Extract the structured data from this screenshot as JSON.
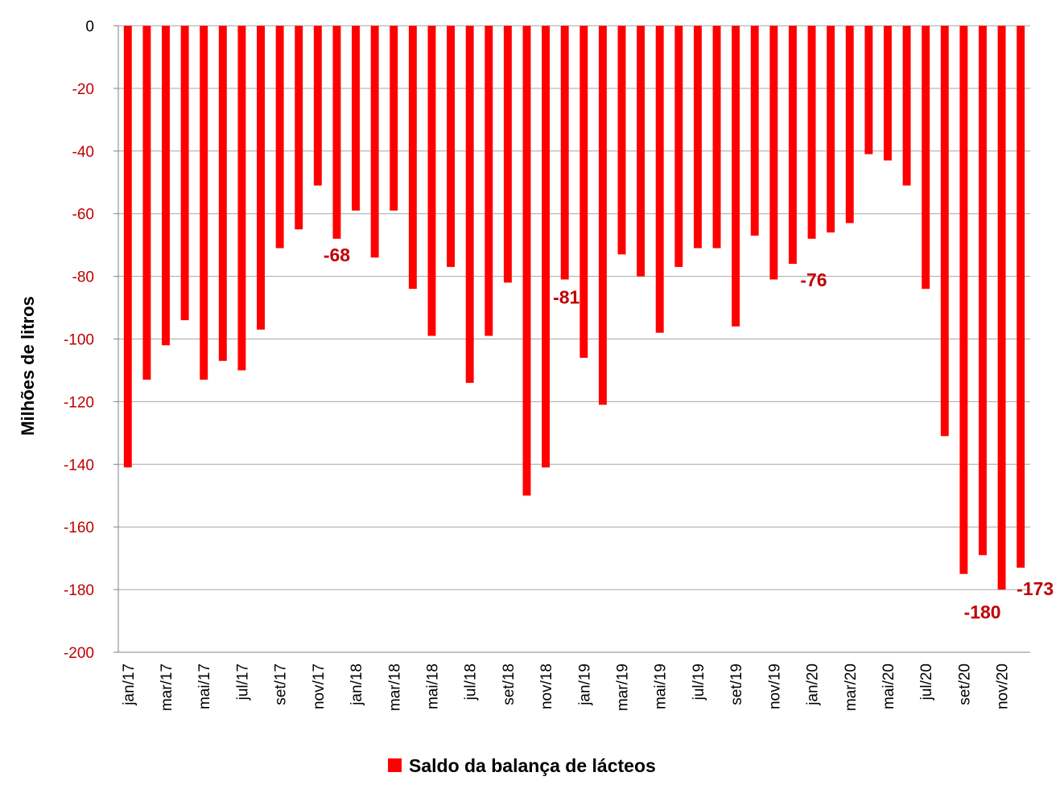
{
  "chart_data": {
    "type": "bar",
    "xlabel": "",
    "ylabel": "Milhões de litros",
    "ylim": [
      -200,
      0
    ],
    "yticks": [
      0,
      -20,
      -40,
      -60,
      -80,
      -100,
      -120,
      -140,
      -160,
      -180,
      -200
    ],
    "grid": true,
    "legend_placement": "bottom",
    "categories": [
      "jan/17",
      "fev/17",
      "mar/17",
      "abr/17",
      "mai/17",
      "jun/17",
      "jul/17",
      "ago/17",
      "set/17",
      "out/17",
      "nov/17",
      "dez/17",
      "jan/18",
      "fev/18",
      "mar/18",
      "abr/18",
      "mai/18",
      "jun/18",
      "jul/18",
      "ago/18",
      "set/18",
      "out/18",
      "nov/18",
      "dez/18",
      "jan/19",
      "fev/19",
      "mar/19",
      "abr/19",
      "mai/19",
      "jun/19",
      "jul/19",
      "ago/19",
      "set/19",
      "out/19",
      "nov/19",
      "dez/19",
      "jan/20",
      "fev/20",
      "mar/20",
      "abr/20",
      "mai/20",
      "jun/20",
      "jul/20",
      "ago/20",
      "set/20",
      "out/20",
      "nov/20",
      "dez/20"
    ],
    "tick_labels_shown": [
      "jan/17",
      "mar/17",
      "mai/17",
      "jul/17",
      "set/17",
      "nov/17",
      "jan/18",
      "mar/18",
      "mai/18",
      "jul/18",
      "set/18",
      "nov/18",
      "jan/19",
      "mar/19",
      "mai/19",
      "jul/19",
      "set/19",
      "nov/19",
      "jan/20",
      "mar/20",
      "mai/20",
      "jul/20",
      "set/20",
      "nov/20"
    ],
    "series": [
      {
        "name": "Saldo da balança de lácteos",
        "color": "#ff0000",
        "values": [
          -141,
          -113,
          -102,
          -94,
          -113,
          -107,
          -110,
          -97,
          -71,
          -65,
          -51,
          -68,
          -59,
          -74,
          -59,
          -84,
          -99,
          -77,
          -114,
          -99,
          -82,
          -150,
          -141,
          -81,
          -106,
          -121,
          -73,
          -80,
          -98,
          -77,
          -71,
          -71,
          -96,
          -67,
          -81,
          -76,
          -68,
          -66,
          -63,
          -41,
          -43,
          -51,
          -84,
          -131,
          -175,
          -169,
          -180,
          -173
        ]
      }
    ],
    "data_labels": [
      {
        "index": 11,
        "text": "-68"
      },
      {
        "index": 23,
        "text": "-81"
      },
      {
        "index": 35,
        "text": "-76"
      },
      {
        "index": 46,
        "text": "-180"
      },
      {
        "index": 47,
        "text": "-173"
      }
    ],
    "colors": {
      "bar": "#ff0000",
      "tick_label_y": "#c00000",
      "data_label": "#c00000",
      "grid": "#a6a6a6",
      "axis": "#808080"
    }
  }
}
